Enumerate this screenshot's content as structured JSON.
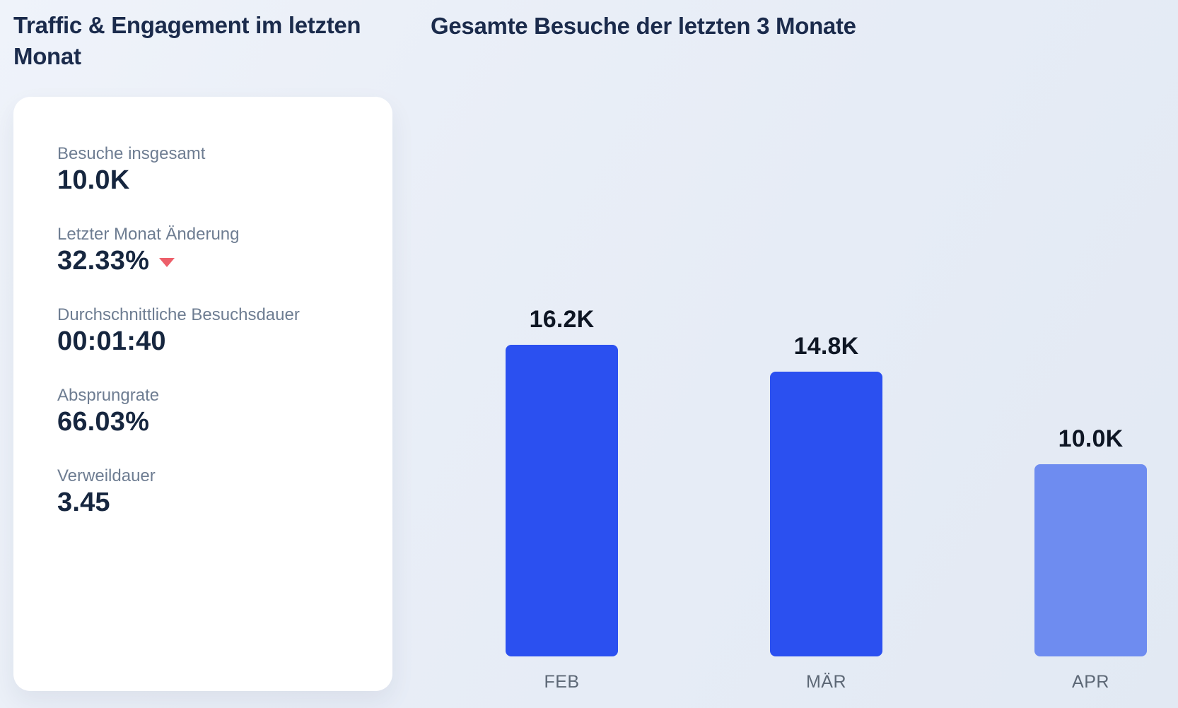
{
  "page": {
    "title": "Traffic & Engagement im letzten Monat",
    "chart_title": "Gesamte Besuche der letzten 3 Monate"
  },
  "stats_card": {
    "items": [
      {
        "label": "Besuche insgesamt",
        "value": "10.0K"
      },
      {
        "label": "Letzter Monat Änderung",
        "value": "32.33%",
        "trend": "down"
      },
      {
        "label": "Durchschnittliche Besuchsdauer",
        "value": "00:01:40"
      },
      {
        "label": "Absprungrate",
        "value": "66.03%"
      },
      {
        "label": "Verweildauer",
        "value": "3.45"
      }
    ]
  },
  "chart_data": {
    "type": "bar",
    "title": "Gesamte Besuche der letzten 3 Monate",
    "categories": [
      "FEB",
      "MÄR",
      "APR"
    ],
    "values": [
      16200,
      14800,
      10000
    ],
    "value_labels": [
      "16.2K",
      "14.8K",
      "10.0K"
    ],
    "ylim": [
      0,
      16200
    ],
    "grid": false,
    "legend": false,
    "bar_colors": [
      "#2b50f0",
      "#2b50f0",
      "#6e8cf0"
    ]
  },
  "colors": {
    "background": "#e9eef6",
    "card": "#ffffff",
    "title": "#1b2b4c",
    "stat_label": "#6e7d92",
    "stat_value": "#16263f",
    "trend_down": "#ed5f6a",
    "bar_primary": "#2b50f0",
    "bar_light": "#6e8cf0",
    "month_label": "#5d6876",
    "bar_value_label": "#0e1624"
  }
}
